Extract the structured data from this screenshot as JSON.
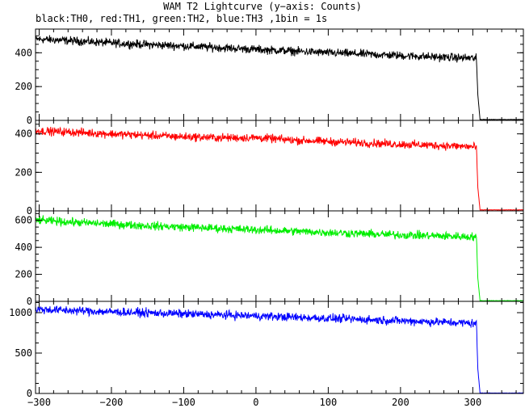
{
  "chart_data": {
    "type": "line",
    "title": "WAM T2 Lightcurve (y−axis: Counts)",
    "subtitle": "black:TH0, red:TH1, green:TH2, blue:TH3 ,1bin = 1s",
    "xlabel": "",
    "xlim": [
      -305,
      370
    ],
    "x_ticks": [
      -300,
      -200,
      -100,
      0,
      100,
      200,
      300
    ],
    "grid": false,
    "panels": [
      {
        "name": "TH0",
        "color": "#000000",
        "ylim": [
          0,
          540
        ],
        "y_ticks": [
          0,
          200,
          400
        ],
        "points": [
          [
            -300,
            480
          ],
          [
            -250,
            470
          ],
          [
            -200,
            458
          ],
          [
            -150,
            448
          ],
          [
            -100,
            440
          ],
          [
            -50,
            430
          ],
          [
            0,
            420
          ],
          [
            50,
            410
          ],
          [
            100,
            400
          ],
          [
            150,
            392
          ],
          [
            200,
            383
          ],
          [
            250,
            375
          ],
          [
            300,
            368
          ],
          [
            305,
            365
          ],
          [
            307,
            150
          ],
          [
            310,
            5
          ],
          [
            370,
            5
          ]
        ]
      },
      {
        "name": "TH1",
        "color": "#ff0000",
        "ylim": [
          0,
          470
        ],
        "y_ticks": [
          0,
          200,
          400
        ],
        "points": [
          [
            -300,
            415
          ],
          [
            -250,
            408
          ],
          [
            -200,
            400
          ],
          [
            -150,
            392
          ],
          [
            -100,
            385
          ],
          [
            -50,
            380
          ],
          [
            0,
            380
          ],
          [
            50,
            368
          ],
          [
            100,
            360
          ],
          [
            150,
            353
          ],
          [
            200,
            346
          ],
          [
            250,
            340
          ],
          [
            300,
            333
          ],
          [
            305,
            330
          ],
          [
            307,
            120
          ],
          [
            310,
            5
          ],
          [
            370,
            5
          ]
        ]
      },
      {
        "name": "TH2",
        "color": "#00ee00",
        "ylim": [
          0,
          670
        ],
        "y_ticks": [
          0,
          200,
          400,
          600
        ],
        "points": [
          [
            -300,
            600
          ],
          [
            -250,
            585
          ],
          [
            -200,
            572
          ],
          [
            -150,
            560
          ],
          [
            -100,
            550
          ],
          [
            -50,
            540
          ],
          [
            0,
            530
          ],
          [
            50,
            520
          ],
          [
            100,
            510
          ],
          [
            150,
            500
          ],
          [
            200,
            492
          ],
          [
            250,
            485
          ],
          [
            300,
            478
          ],
          [
            305,
            475
          ],
          [
            307,
            170
          ],
          [
            310,
            5
          ],
          [
            370,
            5
          ]
        ]
      },
      {
        "name": "TH3",
        "color": "#0000ff",
        "ylim": [
          0,
          1140
        ],
        "y_ticks": [
          0,
          500,
          1000
        ],
        "points": [
          [
            -300,
            1040
          ],
          [
            -250,
            1025
          ],
          [
            -200,
            1010
          ],
          [
            -150,
            998
          ],
          [
            -100,
            985
          ],
          [
            -50,
            972
          ],
          [
            0,
            960
          ],
          [
            50,
            945
          ],
          [
            100,
            930
          ],
          [
            150,
            915
          ],
          [
            200,
            900
          ],
          [
            250,
            885
          ],
          [
            300,
            870
          ],
          [
            305,
            865
          ],
          [
            307,
            300
          ],
          [
            310,
            5
          ],
          [
            370,
            5
          ]
        ]
      }
    ]
  }
}
